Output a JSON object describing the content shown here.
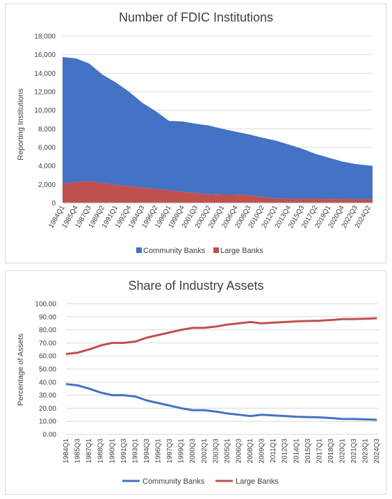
{
  "chart_data": [
    {
      "type": "area",
      "stacked": true,
      "title": "Number of FDIC Institutions",
      "xlabel": "",
      "ylabel": "Reporting Institutions",
      "ylim": [
        0,
        18000
      ],
      "y_ticks": [
        "0",
        "2,000",
        "4,000",
        "6,000",
        "8,000",
        "10,000",
        "12,000",
        "14,000",
        "16,000",
        "18,000"
      ],
      "x_ticks": [
        "1984Q1",
        "1985Q4",
        "1987Q3",
        "1989Q2",
        "1991Q1",
        "1992Q4",
        "1994Q3",
        "1996Q2",
        "1998Q1",
        "1999Q4",
        "2001Q3",
        "2003Q2",
        "2005Q1",
        "2006Q4",
        "2008Q3",
        "2010Q2",
        "2012Q1",
        "2013Q4",
        "2015Q3",
        "2017Q2",
        "2019Q1",
        "2020Q4",
        "2022Q3",
        "2024Q2"
      ],
      "legend_position": "bottom",
      "grid": true,
      "x_start": "1984Q1",
      "x_end": "2024Q4",
      "series": [
        {
          "name": "Community Banks",
          "color": "#4472c4",
          "points": [
            [
              "1984Q1",
              13650
            ],
            [
              "1985Q4",
              13350
            ],
            [
              "1987Q3",
              12700
            ],
            [
              "1989Q2",
              11700
            ],
            [
              "1991Q1",
              11050
            ],
            [
              "1992Q4",
              10200
            ],
            [
              "1994Q3",
              9150
            ],
            [
              "1996Q2",
              8400
            ],
            [
              "1998Q1",
              7500
            ],
            [
              "1999Q4",
              7600
            ],
            [
              "2001Q3",
              7500
            ],
            [
              "2003Q2",
              7400
            ],
            [
              "2005Q1",
              7100
            ],
            [
              "2006Q4",
              6800
            ],
            [
              "2008Q3",
              6550
            ],
            [
              "2010Q2",
              6400
            ],
            [
              "2012Q1",
              6250
            ],
            [
              "2013Q4",
              5850
            ],
            [
              "2015Q3",
              5400
            ],
            [
              "2017Q2",
              4850
            ],
            [
              "2019Q1",
              4450
            ],
            [
              "2020Q4",
              4050
            ],
            [
              "2022Q3",
              3800
            ],
            [
              "2024Q4",
              3600
            ]
          ]
        },
        {
          "name": "Large Banks",
          "color": "#c0504d",
          "points": [
            [
              "1984Q1",
              2100
            ],
            [
              "1985Q4",
              2250
            ],
            [
              "1987Q3",
              2350
            ],
            [
              "1989Q2",
              2150
            ],
            [
              "1991Q1",
              1950
            ],
            [
              "1992Q4",
              1800
            ],
            [
              "1994Q3",
              1650
            ],
            [
              "1996Q2",
              1500
            ],
            [
              "1998Q1",
              1350
            ],
            [
              "1999Q4",
              1200
            ],
            [
              "2001Q3",
              1050
            ],
            [
              "2003Q2",
              950
            ],
            [
              "2005Q1",
              900
            ],
            [
              "2006Q4",
              900
            ],
            [
              "2008Q3",
              850
            ],
            [
              "2010Q2",
              650
            ],
            [
              "2012Q1",
              480
            ],
            [
              "2013Q4",
              450
            ],
            [
              "2015Q3",
              450
            ],
            [
              "2017Q2",
              450
            ],
            [
              "2019Q1",
              430
            ],
            [
              "2020Q4",
              420
            ],
            [
              "2022Q3",
              400
            ],
            [
              "2024Q4",
              400
            ]
          ]
        }
      ]
    },
    {
      "type": "line",
      "title": "Share of Industry Assets",
      "xlabel": "",
      "ylabel": "Percentage of Assets",
      "ylim": [
        0,
        100
      ],
      "y_ticks": [
        "0.00",
        "10.00",
        "20.00",
        "30.00",
        "40.00",
        "50.00",
        "60.00",
        "70.00",
        "80.00",
        "90.00",
        "100.00"
      ],
      "x_ticks": [
        "1984Q1",
        "1985Q3",
        "1987Q1",
        "1988Q3",
        "1990Q1",
        "1991Q3",
        "1993Q1",
        "1994Q3",
        "1996Q1",
        "1997Q3",
        "1999Q1",
        "2000Q3",
        "2002Q1",
        "2003Q3",
        "2005Q1",
        "2006Q3",
        "2008Q1",
        "2009Q3",
        "2011Q1",
        "2012Q3",
        "2014Q1",
        "2015Q3",
        "2017Q1",
        "2018Q3",
        "2020Q1",
        "2021Q3",
        "2023Q1",
        "2024Q3"
      ],
      "legend_position": "bottom",
      "grid": true,
      "x_start": "1984Q1",
      "x_end": "2024Q4",
      "series": [
        {
          "name": "Community Banks",
          "color": "#4472c4",
          "points": [
            [
              "1984Q1",
              38.5
            ],
            [
              "1985Q3",
              37.5
            ],
            [
              "1987Q1",
              35
            ],
            [
              "1988Q3",
              32
            ],
            [
              "1990Q1",
              30
            ],
            [
              "1991Q3",
              30
            ],
            [
              "1993Q1",
              29
            ],
            [
              "1994Q3",
              26
            ],
            [
              "1996Q1",
              24
            ],
            [
              "1997Q3",
              22
            ],
            [
              "1999Q1",
              20
            ],
            [
              "2000Q3",
              18.5
            ],
            [
              "2002Q1",
              18.5
            ],
            [
              "2003Q3",
              17.5
            ],
            [
              "2005Q1",
              16
            ],
            [
              "2006Q3",
              15
            ],
            [
              "2008Q1",
              14
            ],
            [
              "2009Q3",
              15
            ],
            [
              "2011Q1",
              14.5
            ],
            [
              "2012Q3",
              14
            ],
            [
              "2014Q1",
              13.5
            ],
            [
              "2015Q3",
              13.2
            ],
            [
              "2017Q1",
              13
            ],
            [
              "2018Q3",
              12.5
            ],
            [
              "2020Q1",
              11.8
            ],
            [
              "2021Q3",
              11.8
            ],
            [
              "2023Q1",
              11.5
            ],
            [
              "2024Q3",
              11.2
            ]
          ]
        },
        {
          "name": "Large Banks",
          "color": "#c0504d",
          "points": [
            [
              "1984Q1",
              61.5
            ],
            [
              "1985Q3",
              62.5
            ],
            [
              "1987Q1",
              65
            ],
            [
              "1988Q3",
              68
            ],
            [
              "1990Q1",
              70
            ],
            [
              "1991Q3",
              70
            ],
            [
              "1993Q1",
              71
            ],
            [
              "1994Q3",
              74
            ],
            [
              "1996Q1",
              76
            ],
            [
              "1997Q3",
              78
            ],
            [
              "1999Q1",
              80
            ],
            [
              "2000Q3",
              81.5
            ],
            [
              "2002Q1",
              81.5
            ],
            [
              "2003Q3",
              82.5
            ],
            [
              "2005Q1",
              84
            ],
            [
              "2006Q3",
              85
            ],
            [
              "2008Q1",
              86
            ],
            [
              "2009Q3",
              85
            ],
            [
              "2011Q1",
              85.5
            ],
            [
              "2012Q3",
              86
            ],
            [
              "2014Q1",
              86.5
            ],
            [
              "2015Q3",
              86.8
            ],
            [
              "2017Q1",
              87
            ],
            [
              "2018Q3",
              87.5
            ],
            [
              "2020Q1",
              88.2
            ],
            [
              "2021Q3",
              88.2
            ],
            [
              "2023Q1",
              88.5
            ],
            [
              "2024Q3",
              88.8
            ]
          ]
        }
      ]
    }
  ]
}
